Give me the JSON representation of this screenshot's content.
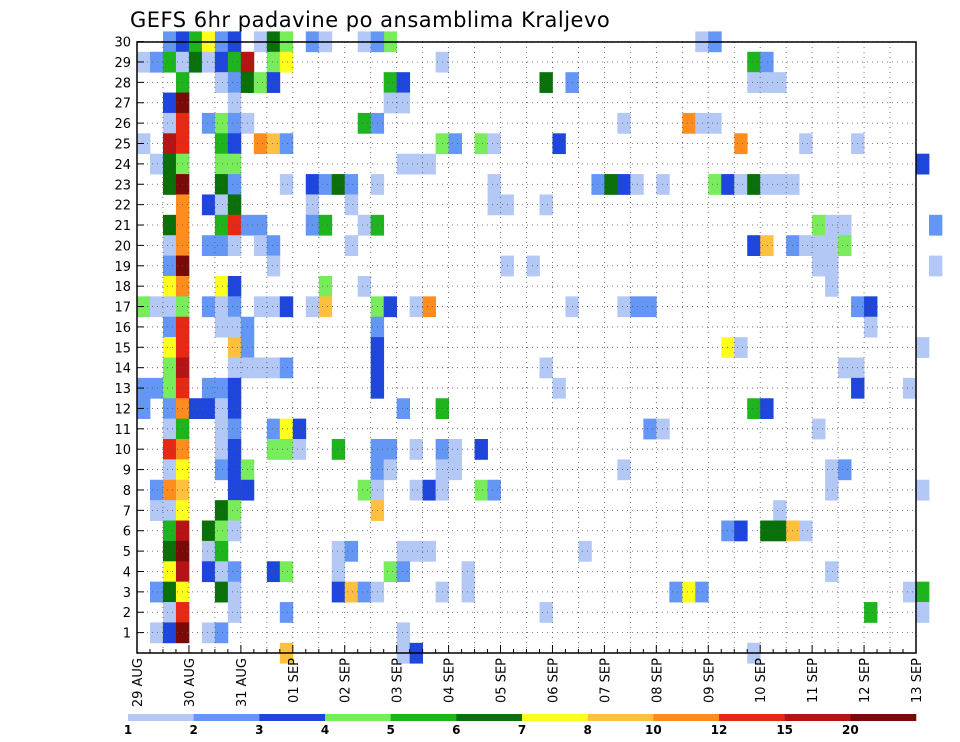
{
  "chart_data": {
    "type": "heatmap",
    "title": "GEFS 6hr padavine po ansamblima Kraljevo",
    "xlabel": "",
    "ylabel": "",
    "x_tick_labels": [
      "29 AUG",
      "30 AUG",
      "31 AUG",
      "01 SEP",
      "02 SEP",
      "03 SEP",
      "04 SEP",
      "05 SEP",
      "06 SEP",
      "07 SEP",
      "08 SEP",
      "09 SEP",
      "10 SEP",
      "11 SEP",
      "12 SEP",
      "13 SEP"
    ],
    "y_tick_labels": [
      "1",
      "2",
      "3",
      "4",
      "5",
      "6",
      "7",
      "8",
      "9",
      "10",
      "11",
      "12",
      "13",
      "14",
      "15",
      "16",
      "17",
      "18",
      "19",
      "20",
      "21",
      "22",
      "23",
      "24",
      "25",
      "26",
      "27",
      "28",
      "29",
      "30"
    ],
    "colorbar": {
      "colors": [
        "#b4c8f5",
        "#6496f5",
        "#1e46dc",
        "#78ec5a",
        "#1eb41e",
        "#0a700a",
        "#ffff1e",
        "#ffc040",
        "#ff8c1e",
        "#e62814",
        "#b41414",
        "#780a0a"
      ],
      "labels": [
        "1",
        "2",
        "3",
        "4",
        "5",
        "6",
        "7",
        "8",
        "10",
        "12",
        "15",
        "20"
      ]
    },
    "cells": [
      [
        30,
        2,
        2
      ],
      [
        30,
        3,
        3
      ],
      [
        30,
        4,
        5
      ],
      [
        30,
        5,
        7
      ],
      [
        30,
        6,
        2
      ],
      [
        30,
        7,
        3
      ],
      [
        30,
        9,
        1
      ],
      [
        30,
        10,
        6
      ],
      [
        30,
        11,
        4
      ],
      [
        30,
        13,
        2
      ],
      [
        30,
        14,
        1
      ],
      [
        30,
        19,
        4
      ],
      [
        30,
        17,
        1
      ],
      [
        30,
        18,
        2
      ],
      [
        30,
        43,
        1
      ],
      [
        30,
        44,
        2
      ],
      [
        29,
        0,
        1
      ],
      [
        29,
        1,
        2
      ],
      [
        29,
        2,
        5
      ],
      [
        29,
        3,
        1
      ],
      [
        29,
        4,
        6
      ],
      [
        29,
        5,
        1
      ],
      [
        29,
        6,
        3
      ],
      [
        29,
        7,
        5
      ],
      [
        29,
        8,
        11
      ],
      [
        29,
        10,
        4
      ],
      [
        29,
        11,
        7
      ],
      [
        29,
        23,
        1
      ],
      [
        29,
        47,
        5
      ],
      [
        29,
        48,
        2
      ],
      [
        28,
        3,
        5
      ],
      [
        28,
        6,
        1
      ],
      [
        28,
        7,
        2
      ],
      [
        28,
        8,
        6
      ],
      [
        28,
        9,
        4
      ],
      [
        28,
        10,
        3
      ],
      [
        28,
        19,
        5
      ],
      [
        28,
        20,
        3
      ],
      [
        28,
        31,
        6
      ],
      [
        28,
        33,
        2
      ],
      [
        28,
        47,
        1
      ],
      [
        28,
        48,
        1
      ],
      [
        28,
        49,
        1
      ],
      [
        27,
        2,
        3
      ],
      [
        27,
        3,
        12
      ],
      [
        27,
        7,
        1
      ],
      [
        27,
        19,
        1
      ],
      [
        27,
        20,
        1
      ],
      [
        26,
        2,
        1
      ],
      [
        26,
        3,
        10
      ],
      [
        26,
        5,
        2
      ],
      [
        26,
        6,
        4
      ],
      [
        26,
        7,
        2
      ],
      [
        26,
        8,
        1
      ],
      [
        26,
        17,
        5
      ],
      [
        26,
        18,
        2
      ],
      [
        26,
        37,
        1
      ],
      [
        26,
        42,
        9
      ],
      [
        26,
        43,
        1
      ],
      [
        26,
        44,
        1
      ],
      [
        25,
        0,
        1
      ],
      [
        25,
        2,
        11
      ],
      [
        25,
        3,
        10
      ],
      [
        25,
        6,
        5
      ],
      [
        25,
        7,
        3
      ],
      [
        25,
        9,
        9
      ],
      [
        25,
        10,
        8
      ],
      [
        25,
        11,
        2
      ],
      [
        25,
        23,
        4
      ],
      [
        25,
        24,
        2
      ],
      [
        25,
        26,
        4
      ],
      [
        25,
        27,
        1
      ],
      [
        25,
        32,
        3
      ],
      [
        25,
        46,
        9
      ],
      [
        25,
        51,
        1
      ],
      [
        25,
        55,
        1
      ],
      [
        24,
        1,
        1
      ],
      [
        24,
        2,
        6
      ],
      [
        24,
        3,
        4
      ],
      [
        24,
        6,
        4
      ],
      [
        24,
        7,
        4
      ],
      [
        24,
        20,
        1
      ],
      [
        24,
        21,
        1
      ],
      [
        24,
        22,
        1
      ],
      [
        24,
        60,
        3
      ],
      [
        23,
        2,
        6
      ],
      [
        23,
        3,
        12
      ],
      [
        23,
        6,
        6
      ],
      [
        23,
        7,
        2
      ],
      [
        23,
        11,
        1
      ],
      [
        23,
        13,
        3
      ],
      [
        23,
        14,
        2
      ],
      [
        23,
        15,
        6
      ],
      [
        23,
        16,
        2
      ],
      [
        23,
        18,
        1
      ],
      [
        23,
        27,
        1
      ],
      [
        23,
        35,
        2
      ],
      [
        23,
        36,
        6
      ],
      [
        23,
        37,
        3
      ],
      [
        23,
        38,
        1
      ],
      [
        23,
        40,
        1
      ],
      [
        23,
        44,
        4
      ],
      [
        23,
        45,
        3
      ],
      [
        23,
        46,
        1
      ],
      [
        23,
        47,
        6
      ],
      [
        23,
        48,
        1
      ],
      [
        23,
        49,
        1
      ],
      [
        23,
        50,
        1
      ],
      [
        22,
        3,
        9
      ],
      [
        22,
        5,
        3
      ],
      [
        22,
        6,
        1
      ],
      [
        22,
        7,
        6
      ],
      [
        22,
        13,
        1
      ],
      [
        22,
        16,
        1
      ],
      [
        22,
        27,
        1
      ],
      [
        22,
        28,
        1
      ],
      [
        22,
        31,
        1
      ],
      [
        21,
        2,
        6
      ],
      [
        21,
        3,
        9
      ],
      [
        21,
        6,
        5
      ],
      [
        21,
        7,
        10
      ],
      [
        21,
        8,
        2
      ],
      [
        21,
        9,
        2
      ],
      [
        21,
        13,
        2
      ],
      [
        21,
        14,
        5
      ],
      [
        21,
        17,
        1
      ],
      [
        21,
        18,
        5
      ],
      [
        21,
        52,
        4
      ],
      [
        21,
        53,
        1
      ],
      [
        21,
        54,
        1
      ],
      [
        21,
        61,
        2
      ],
      [
        20,
        2,
        1
      ],
      [
        20,
        3,
        9
      ],
      [
        20,
        5,
        2
      ],
      [
        20,
        6,
        2
      ],
      [
        20,
        7,
        1
      ],
      [
        20,
        9,
        1
      ],
      [
        20,
        10,
        2
      ],
      [
        20,
        16,
        1
      ],
      [
        20,
        47,
        3
      ],
      [
        20,
        48,
        8
      ],
      [
        20,
        50,
        2
      ],
      [
        20,
        51,
        1
      ],
      [
        20,
        52,
        1
      ],
      [
        20,
        53,
        1
      ],
      [
        20,
        54,
        4
      ],
      [
        19,
        2,
        2
      ],
      [
        19,
        3,
        12
      ],
      [
        19,
        10,
        1
      ],
      [
        19,
        28,
        1
      ],
      [
        19,
        30,
        1
      ],
      [
        19,
        52,
        1
      ],
      [
        19,
        53,
        1
      ],
      [
        19,
        61,
        1
      ],
      [
        18,
        2,
        7
      ],
      [
        18,
        3,
        9
      ],
      [
        18,
        6,
        7
      ],
      [
        18,
        7,
        3
      ],
      [
        18,
        14,
        4
      ],
      [
        18,
        17,
        1
      ],
      [
        18,
        53,
        1
      ],
      [
        17,
        0,
        4
      ],
      [
        17,
        1,
        1
      ],
      [
        17,
        2,
        1
      ],
      [
        17,
        3,
        4
      ],
      [
        17,
        5,
        2
      ],
      [
        17,
        6,
        1
      ],
      [
        17,
        7,
        2
      ],
      [
        17,
        9,
        1
      ],
      [
        17,
        10,
        1
      ],
      [
        17,
        11,
        3
      ],
      [
        17,
        13,
        1
      ],
      [
        17,
        14,
        8
      ],
      [
        17,
        18,
        4
      ],
      [
        17,
        19,
        3
      ],
      [
        17,
        21,
        1
      ],
      [
        17,
        22,
        9
      ],
      [
        17,
        33,
        1
      ],
      [
        17,
        37,
        1
      ],
      [
        17,
        38,
        2
      ],
      [
        17,
        39,
        2
      ],
      [
        17,
        55,
        2
      ],
      [
        17,
        56,
        3
      ],
      [
        16,
        2,
        2
      ],
      [
        16,
        3,
        10
      ],
      [
        16,
        6,
        1
      ],
      [
        16,
        7,
        1
      ],
      [
        16,
        8,
        2
      ],
      [
        16,
        18,
        2
      ],
      [
        16,
        56,
        1
      ],
      [
        15,
        2,
        7
      ],
      [
        15,
        3,
        10
      ],
      [
        15,
        7,
        8
      ],
      [
        15,
        8,
        2
      ],
      [
        15,
        18,
        3
      ],
      [
        15,
        45,
        7
      ],
      [
        15,
        46,
        1
      ],
      [
        15,
        60,
        1
      ],
      [
        14,
        2,
        4
      ],
      [
        14,
        3,
        11
      ],
      [
        14,
        7,
        1
      ],
      [
        14,
        8,
        1
      ],
      [
        14,
        9,
        1
      ],
      [
        14,
        10,
        1
      ],
      [
        14,
        11,
        2
      ],
      [
        14,
        18,
        3
      ],
      [
        14,
        31,
        1
      ],
      [
        14,
        54,
        1
      ],
      [
        14,
        55,
        1
      ],
      [
        13,
        0,
        2
      ],
      [
        13,
        1,
        2
      ],
      [
        13,
        2,
        4
      ],
      [
        13,
        3,
        10
      ],
      [
        13,
        5,
        2
      ],
      [
        13,
        6,
        2
      ],
      [
        13,
        7,
        3
      ],
      [
        13,
        18,
        3
      ],
      [
        13,
        32,
        1
      ],
      [
        13,
        55,
        3
      ],
      [
        13,
        59,
        1
      ],
      [
        12,
        0,
        2
      ],
      [
        12,
        2,
        2
      ],
      [
        12,
        3,
        9
      ],
      [
        12,
        4,
        3
      ],
      [
        12,
        5,
        3
      ],
      [
        12,
        6,
        1
      ],
      [
        12,
        7,
        3
      ],
      [
        12,
        20,
        2
      ],
      [
        12,
        23,
        5
      ],
      [
        12,
        47,
        5
      ],
      [
        12,
        48,
        3
      ],
      [
        11,
        2,
        1
      ],
      [
        11,
        3,
        5
      ],
      [
        11,
        6,
        1
      ],
      [
        11,
        7,
        2
      ],
      [
        11,
        10,
        2
      ],
      [
        11,
        11,
        7
      ],
      [
        11,
        12,
        3
      ],
      [
        11,
        39,
        2
      ],
      [
        11,
        40,
        1
      ],
      [
        11,
        52,
        1
      ],
      [
        10,
        2,
        10
      ],
      [
        10,
        3,
        9
      ],
      [
        10,
        6,
        1
      ],
      [
        10,
        7,
        3
      ],
      [
        10,
        10,
        4
      ],
      [
        10,
        11,
        4
      ],
      [
        10,
        12,
        1
      ],
      [
        10,
        15,
        5
      ],
      [
        10,
        18,
        2
      ],
      [
        10,
        19,
        2
      ],
      [
        10,
        21,
        1
      ],
      [
        10,
        23,
        2
      ],
      [
        10,
        24,
        1
      ],
      [
        10,
        26,
        3
      ],
      [
        9,
        2,
        1
      ],
      [
        9,
        3,
        7
      ],
      [
        9,
        6,
        2
      ],
      [
        9,
        7,
        3
      ],
      [
        9,
        8,
        4
      ],
      [
        9,
        18,
        2
      ],
      [
        9,
        19,
        1
      ],
      [
        9,
        23,
        1
      ],
      [
        9,
        24,
        1
      ],
      [
        9,
        37,
        1
      ],
      [
        9,
        53,
        1
      ],
      [
        9,
        54,
        2
      ],
      [
        8,
        1,
        2
      ],
      [
        8,
        2,
        9
      ],
      [
        8,
        3,
        8
      ],
      [
        8,
        7,
        3
      ],
      [
        8,
        8,
        3
      ],
      [
        8,
        17,
        4
      ],
      [
        8,
        18,
        1
      ],
      [
        8,
        21,
        1
      ],
      [
        8,
        22,
        3
      ],
      [
        8,
        23,
        1
      ],
      [
        8,
        26,
        4
      ],
      [
        8,
        27,
        2
      ],
      [
        8,
        53,
        1
      ],
      [
        8,
        60,
        1
      ],
      [
        7,
        1,
        1
      ],
      [
        7,
        2,
        1
      ],
      [
        7,
        3,
        7
      ],
      [
        7,
        6,
        6
      ],
      [
        7,
        7,
        4
      ],
      [
        7,
        18,
        8
      ],
      [
        7,
        49,
        1
      ],
      [
        6,
        2,
        5
      ],
      [
        6,
        3,
        11
      ],
      [
        6,
        5,
        6
      ],
      [
        6,
        6,
        4
      ],
      [
        6,
        7,
        1
      ],
      [
        6,
        45,
        2
      ],
      [
        6,
        46,
        3
      ],
      [
        6,
        48,
        6
      ],
      [
        6,
        49,
        6
      ],
      [
        6,
        50,
        8
      ],
      [
        6,
        51,
        1
      ],
      [
        5,
        2,
        6
      ],
      [
        5,
        3,
        12
      ],
      [
        5,
        5,
        1
      ],
      [
        5,
        6,
        5
      ],
      [
        5,
        15,
        1
      ],
      [
        5,
        16,
        2
      ],
      [
        5,
        20,
        1
      ],
      [
        5,
        21,
        1
      ],
      [
        5,
        22,
        1
      ],
      [
        5,
        34,
        1
      ],
      [
        4,
        2,
        7
      ],
      [
        4,
        3,
        11
      ],
      [
        4,
        5,
        3
      ],
      [
        4,
        6,
        1
      ],
      [
        4,
        7,
        2
      ],
      [
        4,
        10,
        3
      ],
      [
        4,
        11,
        4
      ],
      [
        4,
        15,
        1
      ],
      [
        4,
        19,
        4
      ],
      [
        4,
        20,
        2
      ],
      [
        4,
        25,
        1
      ],
      [
        4,
        53,
        1
      ],
      [
        3,
        1,
        2
      ],
      [
        3,
        2,
        6
      ],
      [
        3,
        3,
        7
      ],
      [
        3,
        6,
        6
      ],
      [
        3,
        7,
        1
      ],
      [
        3,
        15,
        3
      ],
      [
        3,
        16,
        8
      ],
      [
        3,
        17,
        2
      ],
      [
        3,
        18,
        1
      ],
      [
        3,
        23,
        1
      ],
      [
        3,
        25,
        1
      ],
      [
        3,
        41,
        2
      ],
      [
        3,
        42,
        7
      ],
      [
        3,
        43,
        2
      ],
      [
        3,
        59,
        1
      ],
      [
        3,
        60,
        5
      ],
      [
        2,
        2,
        1
      ],
      [
        2,
        3,
        10
      ],
      [
        2,
        7,
        1
      ],
      [
        2,
        11,
        2
      ],
      [
        2,
        31,
        1
      ],
      [
        2,
        56,
        5
      ],
      [
        2,
        60,
        1
      ],
      [
        1,
        1,
        1
      ],
      [
        1,
        2,
        3
      ],
      [
        1,
        3,
        12
      ],
      [
        1,
        5,
        1
      ],
      [
        1,
        6,
        2
      ],
      [
        1,
        20,
        1
      ],
      [
        0,
        11,
        8
      ],
      [
        0,
        20,
        1
      ],
      [
        0,
        21,
        3
      ],
      [
        0,
        47,
        1
      ]
    ]
  }
}
